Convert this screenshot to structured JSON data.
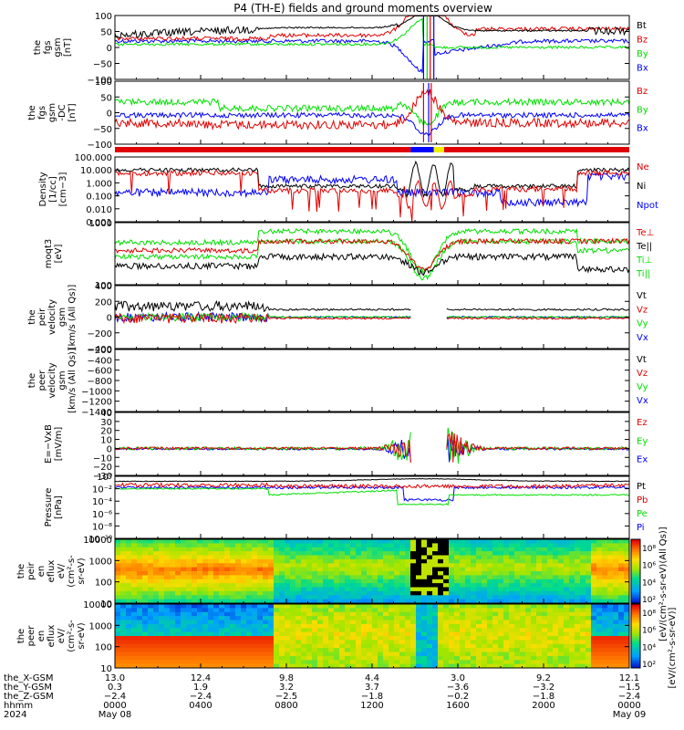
{
  "title": "P4 (TH-E) fields and ground moments overview",
  "colors": {
    "black": "#000000",
    "red": "#e00000",
    "green": "#00e000",
    "blue": "#0000ff",
    "yellow": "#f0f000",
    "frame": "#000000"
  },
  "panels": [
    {
      "id": "fgs-gsm",
      "ylabel": [
        "the",
        "fgs",
        "gsm",
        "[nT]"
      ],
      "yticks": [
        "100",
        "50",
        "0",
        "−50",
        "−100"
      ],
      "ylim": [
        -100,
        100
      ],
      "legend": [
        {
          "label": "Bt",
          "color": "#000000"
        },
        {
          "label": "Bz",
          "color": "#e00000"
        },
        {
          "label": "By",
          "color": "#00e000"
        },
        {
          "label": "Bx",
          "color": "#0000ff"
        }
      ]
    },
    {
      "id": "fgs-gsm-dc",
      "ylabel": [
        "the",
        "fgs",
        "gsm",
        "-DC",
        "[nT]"
      ],
      "yticks": [
        "100",
        "50",
        "0",
        "−50",
        "−100"
      ],
      "ylim": [
        -130,
        130
      ],
      "legend": [
        {
          "label": "Bz",
          "color": "#e00000"
        },
        {
          "label": "By",
          "color": "#00e000"
        },
        {
          "label": "Bx",
          "color": "#0000ff"
        }
      ]
    },
    {
      "id": "density",
      "ylabel": [
        "Density",
        "[1/cc]",
        "[cm−3]"
      ],
      "yticks": [
        "100.000",
        "10.000",
        "1.000",
        "0.100",
        "0.010",
        "0.001"
      ],
      "ylim": [
        0.001,
        100
      ],
      "legend": [
        {
          "label": "Ne",
          "color": "#e00000"
        },
        {
          "label": "Ni",
          "color": "#000000"
        },
        {
          "label": "Npot",
          "color": "#0000ff"
        }
      ]
    },
    {
      "id": "temperature",
      "ylabel": [
        "moqt3",
        "[eV]"
      ],
      "yticks": [
        "1000",
        "100"
      ],
      "ylim": [
        30,
        6000
      ],
      "legend": [
        {
          "label": "Te⊥",
          "color": "#e00000"
        },
        {
          "label": "Te||",
          "color": "#000000"
        },
        {
          "label": "Ti⊥",
          "color": "#00e000"
        },
        {
          "label": "Ti||",
          "color": "#00e000"
        }
      ]
    },
    {
      "id": "peir-velocity",
      "ylabel": [
        "the",
        "peir",
        "velocity",
        "gsm",
        "[km/s (All Qs)]"
      ],
      "yticks": [
        "400",
        "200",
        "0",
        "−200",
        "−400"
      ],
      "ylim": [
        -400,
        400
      ],
      "legend": [
        {
          "label": "Vt",
          "color": "#000000"
        },
        {
          "label": "Vz",
          "color": "#e00000"
        },
        {
          "label": "Vy",
          "color": "#00e000"
        },
        {
          "label": "Vx",
          "color": "#0000ff"
        }
      ]
    },
    {
      "id": "peer-velocity",
      "ylabel": [
        "the",
        "peer",
        "velocity",
        "gsm",
        "[km/s (All Qs)]"
      ],
      "yticks": [
        "−200",
        "−400",
        "−600",
        "−800",
        "−1000",
        "−1200",
        "−1400"
      ],
      "ylim": [
        -1500,
        -150
      ],
      "legend": [
        {
          "label": "Vt",
          "color": "#000000"
        },
        {
          "label": "Vz",
          "color": "#e00000"
        },
        {
          "label": "Vy",
          "color": "#00e000"
        },
        {
          "label": "Vx",
          "color": "#0000ff"
        }
      ]
    },
    {
      "id": "efield",
      "ylabel": [
        "E=−VxB",
        "[mV/m]"
      ],
      "yticks": [
        "40",
        "30",
        "20",
        "10",
        "0",
        "−10",
        "−20",
        "−30"
      ],
      "ylim": [
        -30,
        40
      ],
      "legend": [
        {
          "label": "Ez",
          "color": "#e00000"
        },
        {
          "label": "Ey",
          "color": "#00e000"
        },
        {
          "label": "Ex",
          "color": "#0000ff"
        }
      ]
    },
    {
      "id": "pressure",
      "ylabel": [
        "Pressure",
        "[nPa]"
      ],
      "yticks": [
        "10⁰",
        "10⁻²",
        "10⁻⁴",
        "10⁻⁶",
        "10⁻⁸",
        "10⁻¹⁰"
      ],
      "ylim": [
        1e-10,
        1
      ],
      "legend": [
        {
          "label": "Pt",
          "color": "#000000"
        },
        {
          "label": "Pb",
          "color": "#e00000"
        },
        {
          "label": "Pe",
          "color": "#00e000"
        },
        {
          "label": "Pi",
          "color": "#0000ff"
        }
      ]
    },
    {
      "id": "peir-eflux",
      "ylabel": [
        "the",
        "peir",
        "en",
        "eflux",
        "eV/",
        "(cm²-s-",
        "sr-eV)"
      ],
      "yticks": [
        "10000",
        "1000",
        "100",
        "10"
      ],
      "ylim": [
        10,
        20000
      ],
      "legend": []
    },
    {
      "id": "peer-eflux",
      "ylabel": [
        "the",
        "peer",
        "en",
        "eflux",
        "eV/",
        "(cm²-s-",
        "sr-eV)"
      ],
      "yticks": [
        "10000",
        "1000",
        "100",
        "10"
      ],
      "ylim": [
        10,
        20000
      ],
      "legend": []
    }
  ],
  "colorbar": {
    "label": "[eV/(cm²-s-sr-eV)]",
    "upper_label": "[eV/(cm²-s-sr-eV)(All Qs)]",
    "ticks": [
      "10⁸",
      "10⁶",
      "10⁴",
      "10²"
    ]
  },
  "time_axis": {
    "rows": [
      {
        "name": "the_X-GSM",
        "values": [
          "13.0",
          "12.4",
          "9.8",
          "4.4",
          "3.0",
          "9.2",
          "12.1"
        ]
      },
      {
        "name": "the_Y-GSM",
        "values": [
          "0.3",
          "1.9",
          "3.2",
          "3.7",
          "−3.6",
          "−3.2",
          "−1.5"
        ]
      },
      {
        "name": "the_Z-GSM",
        "values": [
          "−2.4",
          "−2.4",
          "−2.5",
          "−1.8",
          "−0.2",
          "−1.8",
          "−2.4"
        ]
      },
      {
        "name": "hhmm",
        "values": [
          "0000",
          "0400",
          "0800",
          "1200",
          "1600",
          "2000",
          "0000"
        ]
      }
    ],
    "year": "2024",
    "date_start": "May 08",
    "date_end": "May 09"
  },
  "chart_data": {
    "type": "line",
    "title": "P4 (TH-E) fields and ground moments overview",
    "x": [
      "0000",
      "0400",
      "0800",
      "1200",
      "1600",
      "2000",
      "0000"
    ],
    "xlabel": "hhmm",
    "series": [
      {
        "name": "Bt",
        "values": [
          35,
          40,
          55,
          75,
          60,
          55,
          45
        ]
      },
      {
        "name": "Bz",
        "values": [
          20,
          25,
          40,
          60,
          80,
          50,
          30
        ]
      },
      {
        "name": "By",
        "values": [
          5,
          10,
          10,
          20,
          -60,
          0,
          5
        ]
      },
      {
        "name": "Bx",
        "values": [
          25,
          20,
          10,
          -30,
          -50,
          0,
          10
        ]
      }
    ],
    "ylim": [
      -100,
      100
    ]
  }
}
